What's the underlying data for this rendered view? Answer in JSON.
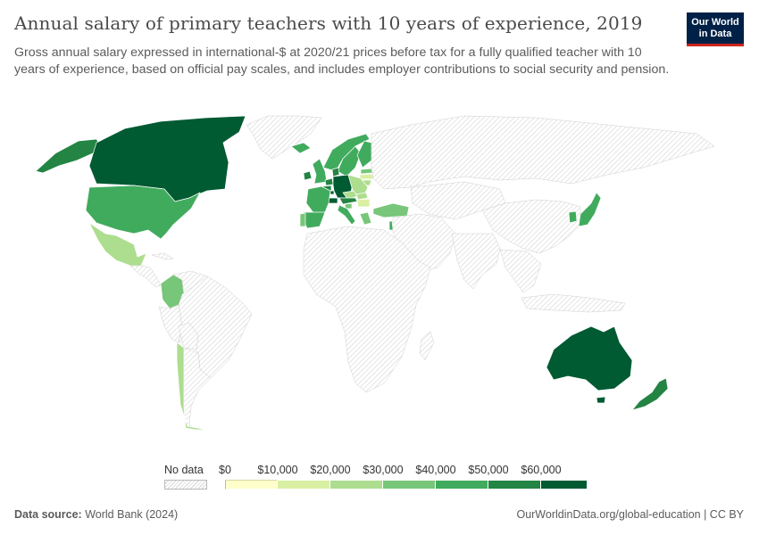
{
  "header": {
    "title": "Annual salary of primary teachers with 10 years of experience, 2019",
    "subtitle": "Gross annual salary expressed in international-$ at 2020/21 prices before tax for a fully qualified teacher with 10 years of experience, based on official pay scales, and includes employer contributions to social security and pension.",
    "logo_line1": "Our World",
    "logo_line2": "in Data"
  },
  "colors": {
    "no_data": "#dcdcdc",
    "bins": [
      "#ffffcc",
      "#d9f0a3",
      "#addd8e",
      "#78c679",
      "#41ab5d",
      "#238443",
      "#005a32"
    ]
  },
  "legend": {
    "no_data_label": "No data",
    "ticks": [
      "$0",
      "$10,000",
      "$20,000",
      "$30,000",
      "$40,000",
      "$50,000",
      "$60,000"
    ]
  },
  "chart_data": {
    "type": "choropleth",
    "variable": "Annual salary of primary teachers with 10 years of experience",
    "year": 2019,
    "unit": "international-$ (2020/21 prices)",
    "bins": [
      0,
      10000,
      20000,
      30000,
      40000,
      50000,
      60000
    ],
    "regions": [
      {
        "name": "Canada",
        "bin": 6
      },
      {
        "name": "Alaska (United States)",
        "bin": 5
      },
      {
        "name": "United States",
        "bin": 4
      },
      {
        "name": "Mexico",
        "bin": 2
      },
      {
        "name": "Colombia",
        "bin": 3
      },
      {
        "name": "Chile",
        "bin": 2
      },
      {
        "name": "Greenland",
        "bin": -1
      },
      {
        "name": "Brazil",
        "bin": -1
      },
      {
        "name": "Argentina",
        "bin": -1
      },
      {
        "name": "Peru",
        "bin": -1
      },
      {
        "name": "Venezuela",
        "bin": -1
      },
      {
        "name": "Bolivia",
        "bin": -1
      },
      {
        "name": "Central America",
        "bin": -1
      },
      {
        "name": "Cuba",
        "bin": -1
      },
      {
        "name": "Ireland",
        "bin": 5
      },
      {
        "name": "United Kingdom",
        "bin": 4
      },
      {
        "name": "Iceland",
        "bin": 4
      },
      {
        "name": "Norway",
        "bin": 4
      },
      {
        "name": "Sweden",
        "bin": 4
      },
      {
        "name": "Finland",
        "bin": 4
      },
      {
        "name": "Denmark",
        "bin": 5
      },
      {
        "name": "Netherlands",
        "bin": 5
      },
      {
        "name": "Belgium",
        "bin": 5
      },
      {
        "name": "Germany",
        "bin": 6
      },
      {
        "name": "Luxembourg",
        "bin": 6
      },
      {
        "name": "Austria",
        "bin": 5
      },
      {
        "name": "Switzerland",
        "bin": 6
      },
      {
        "name": "France",
        "bin": 4
      },
      {
        "name": "Spain",
        "bin": 4
      },
      {
        "name": "Portugal",
        "bin": 3
      },
      {
        "name": "Italy",
        "bin": 4
      },
      {
        "name": "Poland",
        "bin": 2
      },
      {
        "name": "Czechia",
        "bin": 2
      },
      {
        "name": "Slovakia",
        "bin": 2
      },
      {
        "name": "Hungary",
        "bin": 1
      },
      {
        "name": "Lithuania",
        "bin": 2
      },
      {
        "name": "Latvia",
        "bin": 1
      },
      {
        "name": "Estonia",
        "bin": 3
      },
      {
        "name": "Slovenia",
        "bin": 3
      },
      {
        "name": "Greece",
        "bin": 3
      },
      {
        "name": "Turkey",
        "bin": 3
      },
      {
        "name": "Israel",
        "bin": 4
      },
      {
        "name": "Japan",
        "bin": 4
      },
      {
        "name": "South Korea",
        "bin": 4
      },
      {
        "name": "Australia",
        "bin": 6
      },
      {
        "name": "New Zealand",
        "bin": 5
      },
      {
        "name": "Russia",
        "bin": -1
      },
      {
        "name": "China",
        "bin": -1
      },
      {
        "name": "India",
        "bin": -1
      },
      {
        "name": "Africa",
        "bin": -1
      },
      {
        "name": "Middle East",
        "bin": -1
      },
      {
        "name": "Central Asia",
        "bin": -1
      },
      {
        "name": "Southeast Asia",
        "bin": -1
      },
      {
        "name": "Indonesia",
        "bin": -1
      },
      {
        "name": "Madagascar",
        "bin": -1
      }
    ]
  },
  "footer": {
    "source_label": "Data source:",
    "source_value": "World Bank (2024)",
    "url_license": "OurWorldinData.org/global-education | CC BY"
  }
}
